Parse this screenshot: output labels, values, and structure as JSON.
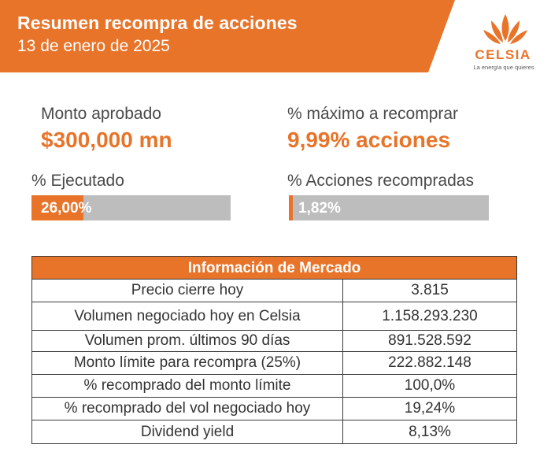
{
  "header": {
    "title": "Resumen recompra de acciones",
    "date": "13 de enero de 2025",
    "brand_color": "#e8742a"
  },
  "logo": {
    "name": "CELSIA",
    "tagline": "La energía que quieres",
    "icon": "flame-rays-icon"
  },
  "metrics": {
    "approved_amount": {
      "label": "Monto aprobado",
      "value": "$300,000 mn"
    },
    "max_repurchase": {
      "label": "% máximo a recomprar",
      "value": "9,99% acciones"
    },
    "executed": {
      "label": "% Ejecutado",
      "value_text": "26,00%",
      "percent": 26.0
    },
    "repurchased_shares": {
      "label": "% Acciones recompradas",
      "value_text": "1,82%",
      "percent": 1.82
    }
  },
  "market_table": {
    "title": "Información de Mercado",
    "rows": [
      {
        "label": "Precio cierre hoy",
        "value": "3.815"
      },
      {
        "label": "Volumen negociado hoy en Celsia",
        "value": "1.158.293.230"
      },
      {
        "label": "Volumen prom. últimos 90 días",
        "value": "891.528.592"
      },
      {
        "label": "Monto límite para recompra (25%)",
        "value": "222.882.148"
      },
      {
        "label": "% recomprado del monto límite",
        "value": "100,0%"
      },
      {
        "label": "% recomprado del vol negociado hoy",
        "value": "19,24%"
      },
      {
        "label": "Dividend yield",
        "value": "8,13%"
      }
    ]
  }
}
